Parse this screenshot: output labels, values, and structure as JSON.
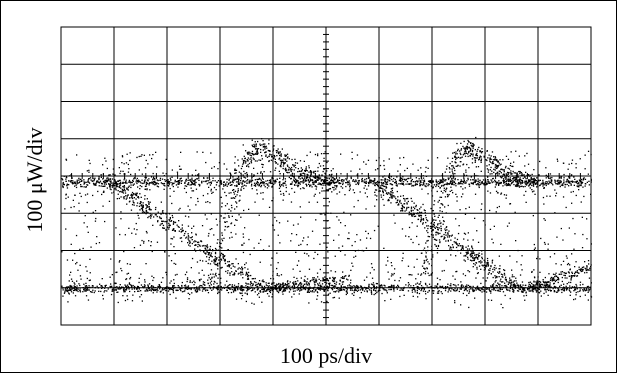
{
  "chart_data": {
    "type": "scatter",
    "title": "",
    "xlabel": "100 ps/div",
    "ylabel": "100 μW/div",
    "grid": true,
    "divisions": {
      "x": 10,
      "y": 8
    },
    "unit_per_div": {
      "x": "100 ps",
      "y": "100 μW"
    },
    "xlim": [
      0,
      1000
    ],
    "ylim": [
      0,
      800
    ],
    "series": [
      {
        "level": "high",
        "power": 385,
        "x_range": [
          0,
          1000
        ]
      },
      {
        "level": "low",
        "power": 100,
        "x_range": [
          0,
          1000
        ]
      },
      {
        "transition": "rising-overshoot",
        "start_x": 280,
        "peak_x": 380,
        "peak_power": 480,
        "end_x": 520
      },
      {
        "transition": "rising-overshoot",
        "start_x": 680,
        "peak_x": 770,
        "peak_power": 480,
        "end_x": 900
      },
      {
        "transition": "falling",
        "start_x": 90,
        "end_x": 380,
        "start_power": 385,
        "end_power": 100
      },
      {
        "transition": "falling",
        "start_x": 590,
        "end_x": 860,
        "start_power": 385,
        "end_power": 100
      },
      {
        "transition": "slow-rise-tail",
        "start_x": 380,
        "end_x": 540,
        "start_power": 100,
        "end_power": 130
      },
      {
        "transition": "slow-rise-tail",
        "start_x": 880,
        "end_x": 1000,
        "start_power": 100,
        "end_power": 160
      }
    ]
  },
  "colors": {
    "trace": "#000000",
    "grid": "#000000",
    "background": "#ffffff"
  }
}
